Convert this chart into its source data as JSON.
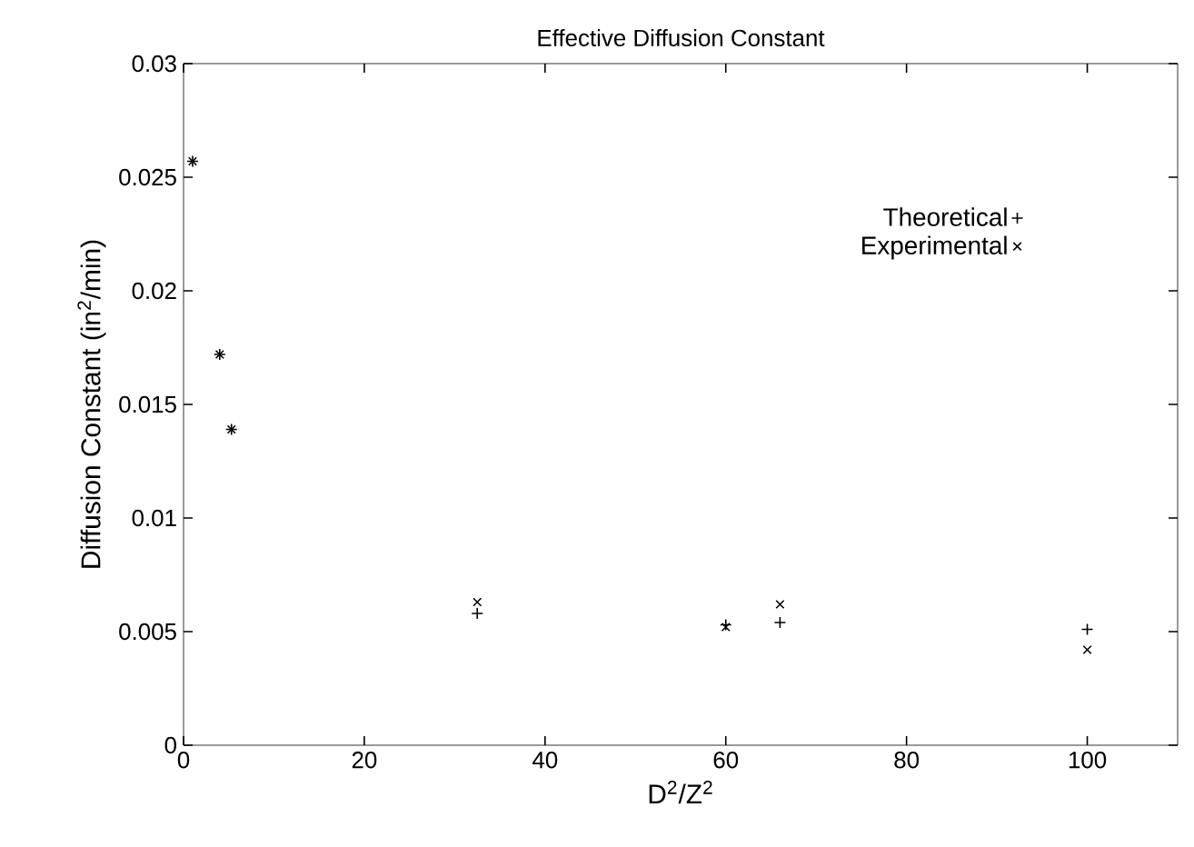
{
  "chart_data": {
    "type": "scatter",
    "title": "Effective Diffusion Constant",
    "xlabel": "D$^{2}$/Z$^{2}$",
    "ylabel": "Diffusion Constant (in$^{2}$/min)",
    "x": [
      1,
      4,
      5.3,
      32.5,
      60,
      66,
      100
    ],
    "series": [
      {
        "name": "Theoretical",
        "color": "#000000",
        "marker": "plus",
        "values": [
          0.0257,
          0.0172,
          0.0139,
          0.0058,
          0.0053,
          0.0054,
          0.0051
        ]
      },
      {
        "name": "Experimental",
        "color": "#000000",
        "marker": "cross",
        "values": [
          0.0257,
          0.0172,
          0.0139,
          0.0063,
          0.0052,
          0.0062,
          0.0042
        ]
      }
    ],
    "xlim": [
      0,
      110
    ],
    "ylim": [
      0,
      0.03
    ],
    "xticks": [
      0,
      20,
      40,
      60,
      80,
      100
    ],
    "yticks": [
      0,
      0.005,
      0.01,
      0.015,
      0.02,
      0.025,
      0.03
    ],
    "legend": "top right",
    "grid": false
  }
}
